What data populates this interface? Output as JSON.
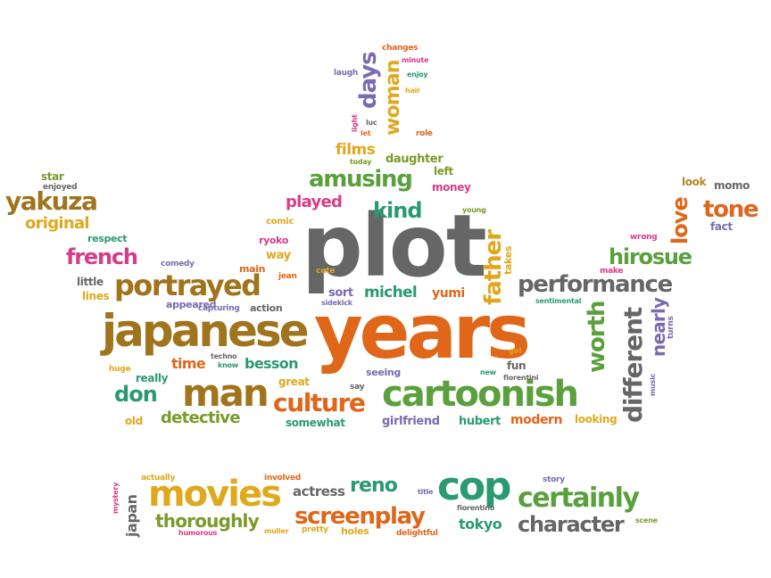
{
  "palette": {
    "brown": "#a0741c",
    "orange": "#e0661a",
    "gold": "#e0a81c",
    "green": "#5aa03c",
    "olive": "#7a9a2a",
    "teal": "#2a9a72",
    "purple": "#7a6ab0",
    "magenta": "#d83c88",
    "gray": "#666666",
    "darkgold": "#b08a24"
  },
  "words": [
    {
      "t": "plot",
      "c": "gray"
    },
    {
      "t": "years",
      "c": "orange"
    },
    {
      "t": "japanese",
      "c": "brown"
    },
    {
      "t": "cartoonish",
      "c": "green"
    },
    {
      "t": "man",
      "c": "brown"
    },
    {
      "t": "movies",
      "c": "gold"
    },
    {
      "t": "cop",
      "c": "teal"
    },
    {
      "t": "portrayed",
      "c": "brown"
    },
    {
      "t": "performance",
      "c": "gray"
    },
    {
      "t": "culture",
      "c": "orange"
    },
    {
      "t": "screenplay",
      "c": "orange"
    },
    {
      "t": "certainly",
      "c": "green"
    },
    {
      "t": "character",
      "c": "gray"
    },
    {
      "t": "amusing",
      "c": "green"
    },
    {
      "t": "yakuza",
      "c": "brown"
    },
    {
      "t": "french",
      "c": "magenta"
    },
    {
      "t": "tone",
      "c": "orange"
    },
    {
      "t": "hirosue",
      "c": "green"
    },
    {
      "t": "original",
      "c": "gold"
    },
    {
      "t": "kind",
      "c": "teal"
    },
    {
      "t": "played",
      "c": "magenta"
    },
    {
      "t": "days",
      "c": "purple"
    },
    {
      "t": "woman",
      "c": "gold"
    },
    {
      "t": "father",
      "c": "gold"
    },
    {
      "t": "worth",
      "c": "green"
    },
    {
      "t": "different",
      "c": "gray"
    },
    {
      "t": "nearly",
      "c": "purple"
    },
    {
      "t": "love",
      "c": "orange"
    },
    {
      "t": "detective",
      "c": "olive"
    },
    {
      "t": "don",
      "c": "teal"
    },
    {
      "t": "time",
      "c": "orange"
    },
    {
      "t": "besson",
      "c": "teal"
    },
    {
      "t": "michel",
      "c": "teal"
    },
    {
      "t": "thoroughly",
      "c": "olive"
    },
    {
      "t": "reno",
      "c": "teal"
    },
    {
      "t": "actress",
      "c": "gray"
    },
    {
      "t": "tokyo",
      "c": "teal"
    },
    {
      "t": "japan",
      "c": "gray"
    },
    {
      "t": "films",
      "c": "gold"
    },
    {
      "t": "daughter",
      "c": "olive"
    },
    {
      "t": "money",
      "c": "magenta"
    },
    {
      "t": "left",
      "c": "olive"
    },
    {
      "t": "sort",
      "c": "purple"
    },
    {
      "t": "yumi",
      "c": "orange"
    },
    {
      "t": "modern",
      "c": "orange"
    },
    {
      "t": "hubert",
      "c": "teal"
    },
    {
      "t": "girlfriend",
      "c": "purple"
    },
    {
      "t": "looking",
      "c": "gold"
    },
    {
      "t": "somewhat",
      "c": "teal"
    },
    {
      "t": "great",
      "c": "gold"
    },
    {
      "t": "really",
      "c": "teal"
    },
    {
      "t": "old",
      "c": "gold"
    },
    {
      "t": "appeared",
      "c": "purple"
    },
    {
      "t": "lines",
      "c": "gold"
    },
    {
      "t": "little",
      "c": "gray"
    },
    {
      "t": "action",
      "c": "gray"
    },
    {
      "t": "ryoko",
      "c": "magenta"
    },
    {
      "t": "way",
      "c": "gold"
    },
    {
      "t": "main",
      "c": "orange"
    },
    {
      "t": "fun",
      "c": "gray"
    },
    {
      "t": "seeing",
      "c": "purple"
    },
    {
      "t": "holes",
      "c": "gold"
    },
    {
      "t": "fact",
      "c": "purple"
    },
    {
      "t": "star",
      "c": "olive"
    },
    {
      "t": "respect",
      "c": "teal"
    },
    {
      "t": "comic",
      "c": "gold"
    },
    {
      "t": "takes",
      "c": "gold"
    },
    {
      "t": "look",
      "c": "darkgold"
    },
    {
      "t": "momo",
      "c": "gray"
    },
    {
      "t": "comedy",
      "c": "purple"
    },
    {
      "t": "enjoyed",
      "c": "gray"
    },
    {
      "t": "capturing",
      "c": "purple"
    },
    {
      "t": "huge",
      "c": "gold"
    },
    {
      "t": "techno",
      "c": "gray"
    },
    {
      "t": "know",
      "c": "teal"
    },
    {
      "t": "say",
      "c": "gray"
    },
    {
      "t": "new",
      "c": "teal"
    },
    {
      "t": "fiorentini",
      "c": "gray"
    },
    {
      "t": "music",
      "c": "purple"
    },
    {
      "t": "turns",
      "c": "purple"
    },
    {
      "t": "girl",
      "c": "gold"
    },
    {
      "t": "sentimental",
      "c": "teal"
    },
    {
      "t": "make",
      "c": "magenta"
    },
    {
      "t": "wrong",
      "c": "magenta"
    },
    {
      "t": "young",
      "c": "olive"
    },
    {
      "t": "cute",
      "c": "gold"
    },
    {
      "t": "jean",
      "c": "orange"
    },
    {
      "t": "sidekick",
      "c": "purple"
    },
    {
      "t": "changes",
      "c": "orange"
    },
    {
      "t": "minute",
      "c": "magenta"
    },
    {
      "t": "enjoy",
      "c": "teal"
    },
    {
      "t": "laugh",
      "c": "purple"
    },
    {
      "t": "hair",
      "c": "gold"
    },
    {
      "t": "luc",
      "c": "gray"
    },
    {
      "t": "let",
      "c": "orange"
    },
    {
      "t": "light",
      "c": "magenta"
    },
    {
      "t": "role",
      "c": "orange"
    },
    {
      "t": "today",
      "c": "olive"
    },
    {
      "t": "actually",
      "c": "gold"
    },
    {
      "t": "mystery",
      "c": "magenta"
    },
    {
      "t": "humorous",
      "c": "magenta"
    },
    {
      "t": "involved",
      "c": "orange"
    },
    {
      "t": "muller",
      "c": "gold"
    },
    {
      "t": "pretty",
      "c": "gold"
    },
    {
      "t": "delightful",
      "c": "orange"
    },
    {
      "t": "title",
      "c": "purple"
    },
    {
      "t": "fiorentino",
      "c": "gray"
    },
    {
      "t": "story",
      "c": "purple"
    },
    {
      "t": "scene",
      "c": "olive"
    }
  ]
}
